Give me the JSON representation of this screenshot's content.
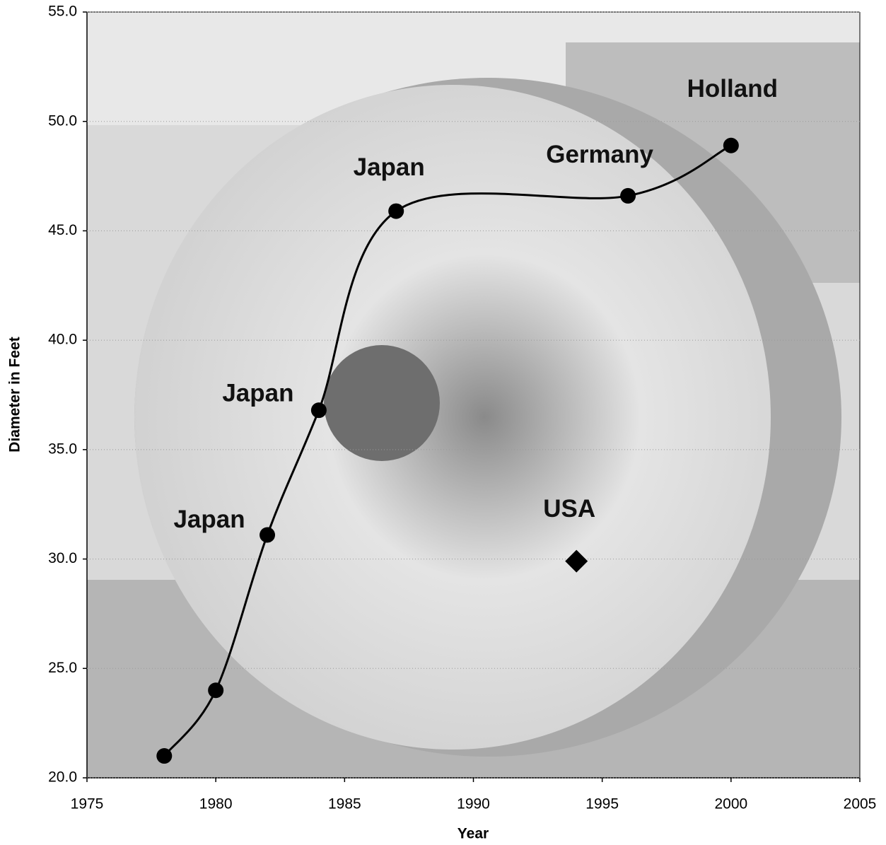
{
  "chart_data": {
    "type": "line",
    "x_label": "Year",
    "y_label": "Diameter in Feet",
    "xlim": [
      1975,
      2005
    ],
    "xticks": [
      1975,
      1980,
      1985,
      1990,
      1995,
      2000,
      2005
    ],
    "ylim": [
      20,
      55
    ],
    "yticks": [
      {
        "value": 20,
        "label": "20.0"
      },
      {
        "value": 25,
        "label": "25.0"
      },
      {
        "value": 30,
        "label": "30.0"
      },
      {
        "value": 35,
        "label": "35.0"
      },
      {
        "value": 40,
        "label": "40.0"
      },
      {
        "value": 45,
        "label": "45.0"
      },
      {
        "value": 50,
        "label": "50.0"
      },
      {
        "value": 55,
        "label": "55.0"
      }
    ],
    "grid": true,
    "series": [
      {
        "color": "#000000",
        "marker": "circle",
        "x": [
          1978,
          1980,
          1982,
          1984,
          1987,
          1996,
          2000
        ],
        "values": [
          21.0,
          24.0,
          31.1,
          36.8,
          45.9,
          46.6,
          48.9
        ]
      },
      {
        "color": "#000000",
        "marker": "diamond",
        "x": [
          1994
        ],
        "values": [
          29.9
        ]
      }
    ],
    "annotations": [
      "Japan",
      "Japan",
      "Japan",
      "Germany",
      "Holland",
      "USA"
    ]
  }
}
